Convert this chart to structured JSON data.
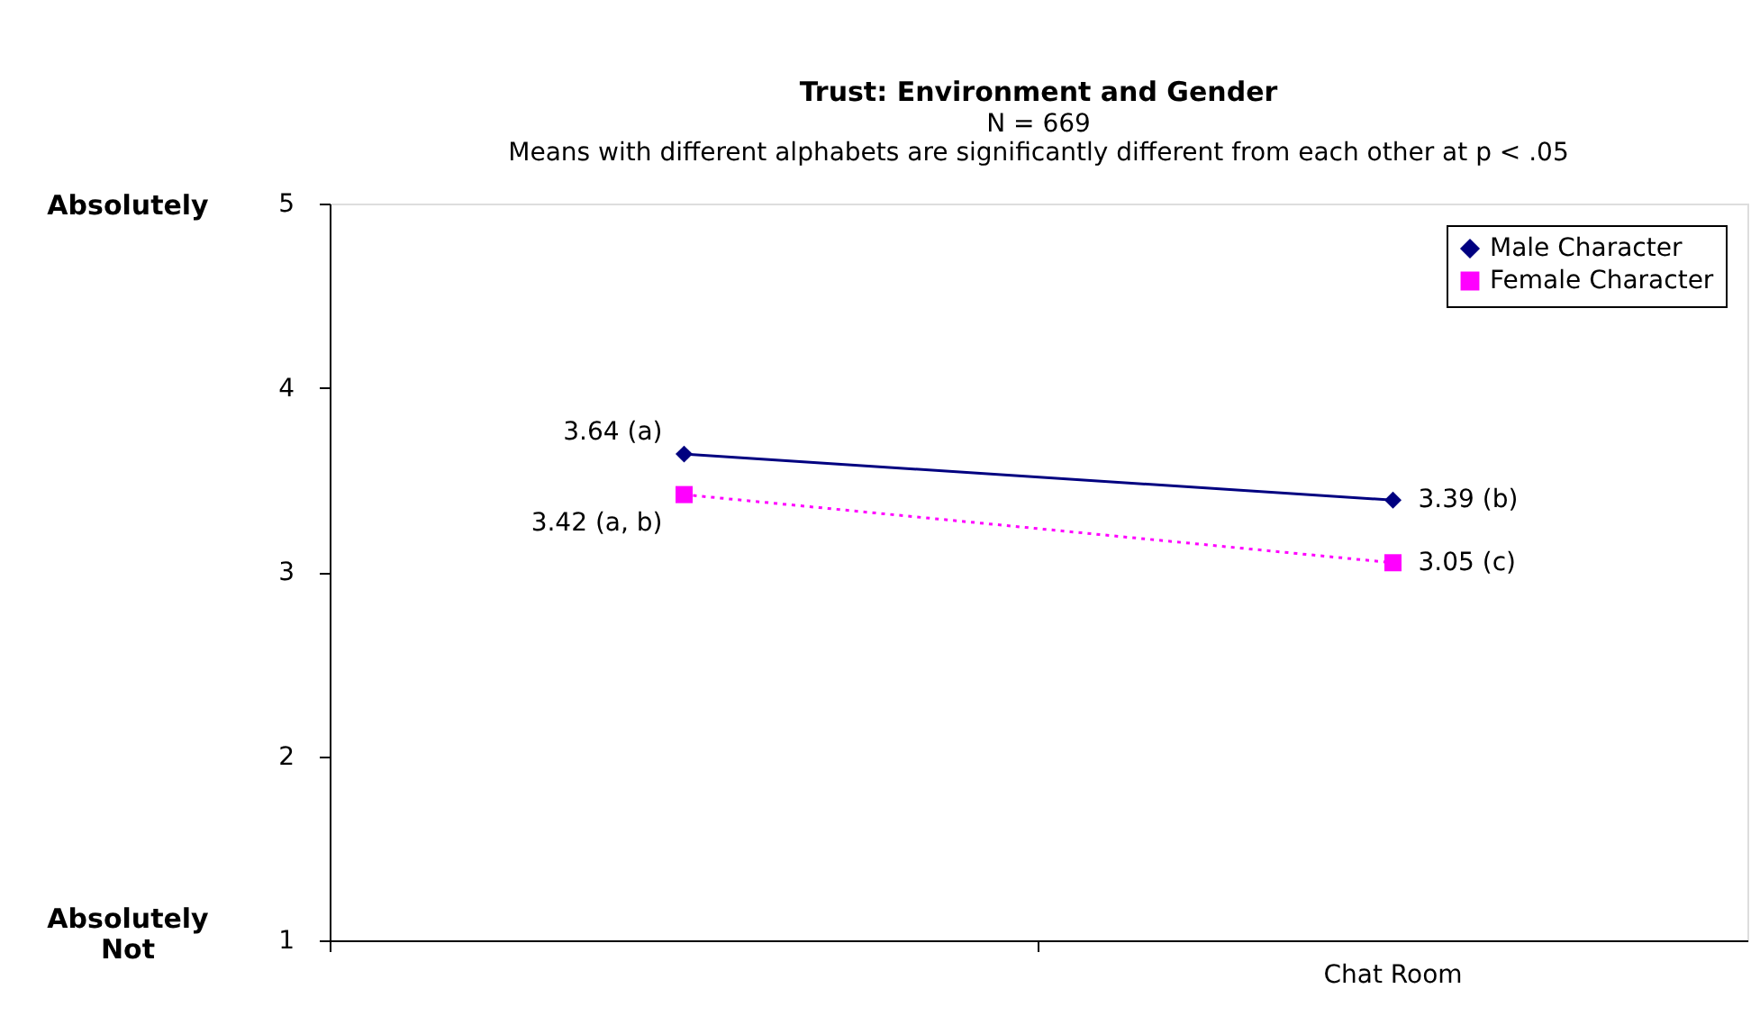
{
  "chart_data": {
    "type": "line",
    "title": "Trust: Environment and Gender",
    "subtitle": "N = 669",
    "annotations": [
      "Means with different alphabets are significantly different from each other at p < .05",
      "Absolutely",
      "Absolutely Not"
    ],
    "categories": [
      null,
      "Chat Room"
    ],
    "series": [
      {
        "name": "Male Character",
        "color": "#000080",
        "values": [
          3.64,
          3.39
        ],
        "marker": "diamond",
        "line_style": "solid",
        "value_labels": [
          "3.64 (a)",
          "3.39 (b)"
        ]
      },
      {
        "name": "Female Character",
        "color": "#ff00ff",
        "values": [
          3.42,
          3.05
        ],
        "marker": "square",
        "line_style": "dotted",
        "value_labels": [
          "3.42 (a, b)",
          "3.05 (c)"
        ]
      }
    ],
    "ylim": [
      1,
      5
    ],
    "yticks": [
      1,
      2,
      3,
      4,
      5
    ],
    "grid": false,
    "legend": "top right"
  }
}
